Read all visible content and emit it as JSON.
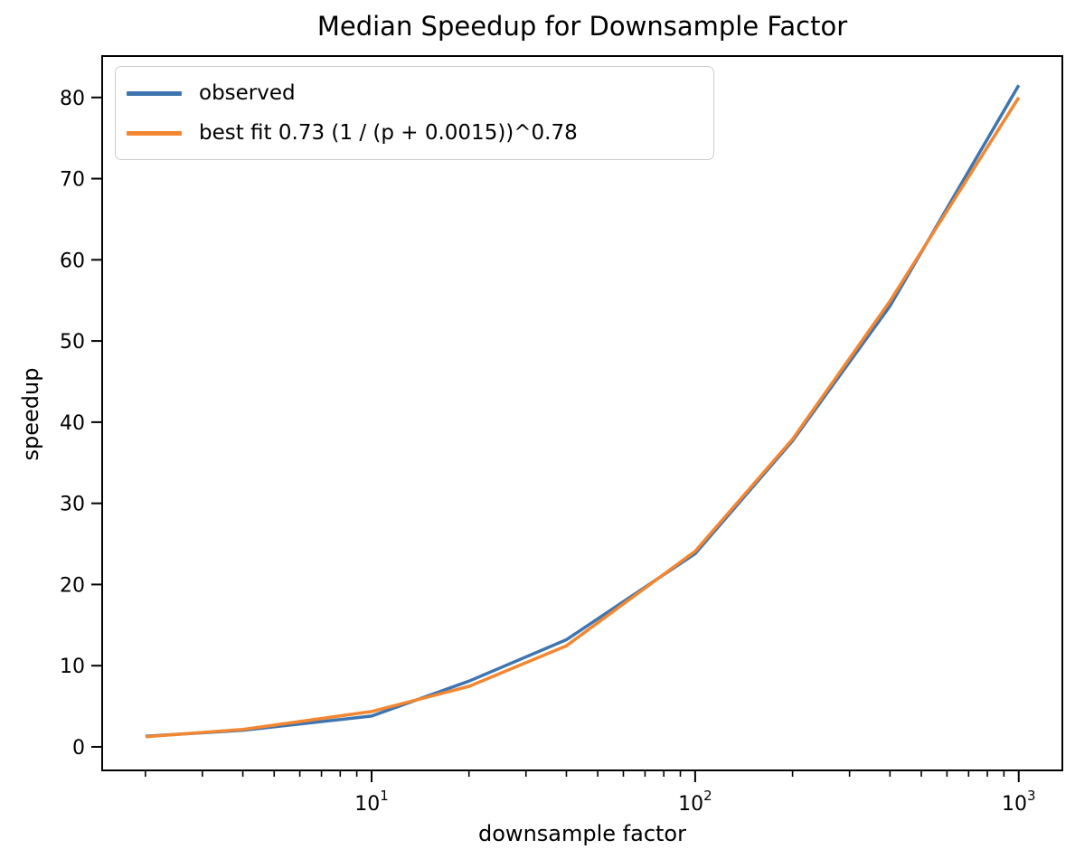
{
  "figure": {
    "title": "Median Speedup for Downsample Factor",
    "xlabel": "downsample factor",
    "ylabel": "speedup"
  },
  "legend": {
    "position": "upper left",
    "entries": [
      {
        "label": "observed",
        "color": "#3e75b0"
      },
      {
        "label": "best fit 0.73 (1 / (p + 0.0015))^0.78",
        "color": "#f38630"
      }
    ]
  },
  "chart_data": {
    "type": "line",
    "title": "Median Speedup for Downsample Factor",
    "xlabel": "downsample factor",
    "ylabel": "speedup",
    "x_scale": "log",
    "y_scale": "linear",
    "grid": false,
    "legend_position": "upper left",
    "x": [
      2,
      4,
      10,
      20,
      40,
      100,
      200,
      400,
      1000
    ],
    "series": [
      {
        "name": "observed",
        "color": "#3e75b0",
        "values": [
          1.3,
          2.05,
          3.8,
          8.1,
          13.2,
          23.8,
          37.7,
          54.3,
          81.5
        ]
      },
      {
        "name": "best fit 0.73 (1 / (p + 0.0015))^0.78",
        "color": "#f38630",
        "values": [
          1.25,
          2.15,
          4.35,
          7.45,
          12.45,
          24.1,
          37.9,
          54.9,
          80.0
        ]
      }
    ],
    "xlim": [
      1.47,
      1364
    ],
    "ylim": [
      -2.9,
      85.1
    ],
    "x_ticks": [
      {
        "value": 10,
        "base": "10",
        "exp": "1"
      },
      {
        "value": 100,
        "base": "10",
        "exp": "2"
      },
      {
        "value": 1000,
        "base": "10",
        "exp": "3"
      }
    ],
    "y_ticks": [
      0,
      10,
      20,
      30,
      40,
      50,
      60,
      70,
      80
    ]
  },
  "colors": {
    "axis": "#000000",
    "tick_text": "#000000",
    "legend_border": "#cccccc",
    "background": "#ffffff"
  }
}
